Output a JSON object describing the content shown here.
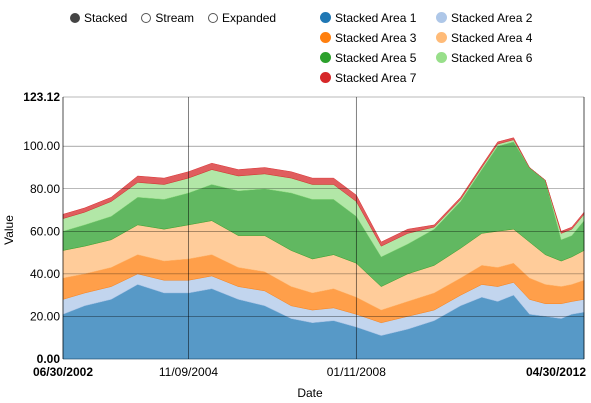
{
  "controls": [
    {
      "label": "Stacked",
      "selected": true
    },
    {
      "label": "Stream",
      "selected": false
    },
    {
      "label": "Expanded",
      "selected": false
    }
  ],
  "chart_data": {
    "type": "area",
    "stacked": true,
    "xlabel": "Date",
    "ylabel": "Value",
    "ylim": [
      0,
      123.12
    ],
    "y_ticks": [
      "0.00",
      "20.00",
      "40.00",
      "60.00",
      "80.00",
      "100.00",
      "123.12"
    ],
    "x_ticks": [
      "06/30/2002",
      "11/09/2004",
      "01/11/2008",
      "04/30/2012"
    ],
    "x_tick_years": [
      2002.49,
      2004.86,
      2008.03,
      2012.33
    ],
    "xlim": [
      2002.49,
      2012.33
    ],
    "grid": "vertical and horizontal",
    "legend_position": "top-right",
    "x": [
      2002.49,
      2002.9,
      2003.4,
      2003.9,
      2004.4,
      2004.86,
      2005.3,
      2005.8,
      2006.3,
      2006.8,
      2007.2,
      2007.6,
      2008.03,
      2008.5,
      2009.0,
      2009.5,
      2010.0,
      2010.4,
      2010.7,
      2011.0,
      2011.3,
      2011.6,
      2011.9,
      2012.1,
      2012.33
    ],
    "series": [
      {
        "name": "Stacked Area 1",
        "color": "#1f77b4",
        "values": [
          21,
          25,
          28,
          35,
          31,
          31,
          33,
          28,
          25,
          19,
          17,
          18,
          15,
          11,
          14,
          18,
          25,
          29,
          27,
          30,
          21,
          20,
          19,
          21,
          22
        ]
      },
      {
        "name": "Stacked Area 2",
        "color": "#aec7e8",
        "values": [
          7,
          6,
          6,
          5,
          6,
          6,
          6,
          6,
          7,
          6,
          6,
          6,
          6,
          6,
          6,
          5,
          5,
          6,
          7,
          6,
          7,
          6,
          7,
          6,
          6
        ]
      },
      {
        "name": "Stacked Area 3",
        "color": "#ff7f0e",
        "values": [
          10,
          9,
          9,
          9,
          9,
          10,
          10,
          9,
          9,
          9,
          8,
          9,
          8,
          6,
          7,
          8,
          8,
          9,
          9,
          9,
          10,
          9,
          8,
          8,
          9
        ]
      },
      {
        "name": "Stacked Area 4",
        "color": "#ffbb78",
        "values": [
          13,
          13,
          13,
          14,
          15,
          16,
          16,
          15,
          17,
          17,
          16,
          16,
          16,
          11,
          13,
          13,
          14,
          15,
          17,
          16,
          17,
          14,
          12,
          13,
          14
        ]
      },
      {
        "name": "Stacked Area 5",
        "color": "#2ca02c",
        "values": [
          9,
          10,
          11,
          13,
          14,
          15,
          17,
          21,
          22,
          27,
          28,
          26,
          22,
          14,
          14,
          17,
          22,
          30,
          40,
          41,
          35,
          35,
          10,
          10,
          14
        ]
      },
      {
        "name": "Stacked Area 6",
        "color": "#98df8a",
        "values": [
          6,
          6,
          7,
          7,
          7,
          7,
          7,
          7,
          7,
          7,
          7,
          7,
          7,
          5,
          5,
          1,
          1,
          1,
          1,
          1,
          0,
          0,
          3,
          3,
          3
        ]
      },
      {
        "name": "Stacked Area 7",
        "color": "#d62728",
        "values": [
          2,
          2,
          2,
          3,
          3,
          3,
          3,
          3,
          3,
          3,
          3,
          3,
          3,
          2,
          2,
          1,
          1,
          1,
          1,
          1,
          0,
          0,
          1,
          1,
          1
        ]
      }
    ]
  }
}
